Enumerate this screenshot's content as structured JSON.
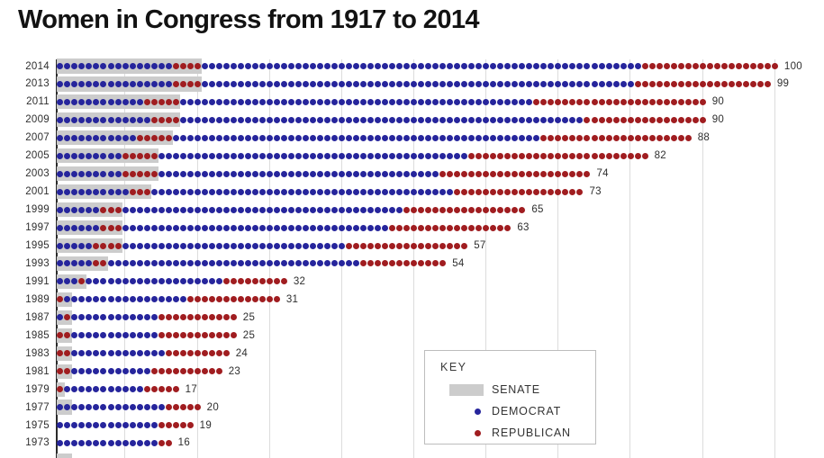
{
  "title": "Women in Congress from 1917 to 2014",
  "key": {
    "heading": "KEY",
    "senate_label": "SENATE",
    "democrat_label": "DEMOCRAT",
    "republican_label": "REPUBLICAN"
  },
  "colors": {
    "democrat": "#26259c",
    "republican": "#a01d20",
    "senate_band": "#cccccc",
    "gridline": "#dcdcdc",
    "axis": "#2b2b2b"
  },
  "chart_data": {
    "type": "dot-matrix",
    "title": "Women in Congress from 1917 to 2014",
    "legend": [
      "SENATE",
      "DEMOCRAT",
      "REPUBLICAN"
    ],
    "gridline_interval_seats": 10,
    "seat_axis_range": [
      0,
      100
    ],
    "note_partial_next_row_band_seats": 2,
    "rows": [
      {
        "year": "2014",
        "senate_d": 16,
        "senate_r": 4,
        "house_d": 61,
        "house_r": 19,
        "total": 100
      },
      {
        "year": "2013",
        "senate_d": 16,
        "senate_r": 4,
        "house_d": 60,
        "house_r": 19,
        "total": 99
      },
      {
        "year": "2011",
        "senate_d": 12,
        "senate_r": 5,
        "house_d": 49,
        "house_r": 24,
        "total": 90
      },
      {
        "year": "2009",
        "senate_d": 13,
        "senate_r": 4,
        "house_d": 56,
        "house_r": 17,
        "total": 90
      },
      {
        "year": "2007",
        "senate_d": 11,
        "senate_r": 5,
        "house_d": 51,
        "house_r": 21,
        "total": 88
      },
      {
        "year": "2005",
        "senate_d": 9,
        "senate_r": 5,
        "house_d": 43,
        "house_r": 25,
        "total": 82
      },
      {
        "year": "2003",
        "senate_d": 9,
        "senate_r": 5,
        "house_d": 39,
        "house_r": 21,
        "total": 74
      },
      {
        "year": "2001",
        "senate_d": 10,
        "senate_r": 3,
        "house_d": 42,
        "house_r": 18,
        "total": 73
      },
      {
        "year": "1999",
        "senate_d": 6,
        "senate_r": 3,
        "house_d": 39,
        "house_r": 17,
        "total": 65
      },
      {
        "year": "1997",
        "senate_d": 6,
        "senate_r": 3,
        "house_d": 37,
        "house_r": 17,
        "total": 63
      },
      {
        "year": "1995",
        "senate_d": 5,
        "senate_r": 4,
        "house_d": 31,
        "house_r": 17,
        "total": 57
      },
      {
        "year": "1993",
        "senate_d": 5,
        "senate_r": 2,
        "house_d": 35,
        "house_r": 12,
        "total": 54
      },
      {
        "year": "1991",
        "senate_d": 3,
        "senate_r": 1,
        "house_d": 19,
        "house_r": 9,
        "total": 32
      },
      {
        "year": "1989",
        "senate_d": 1,
        "senate_r": 1,
        "house_d": 16,
        "house_r": 13,
        "total": 31,
        "senate_order": "rd"
      },
      {
        "year": "1987",
        "senate_d": 1,
        "senate_r": 1,
        "house_d": 12,
        "house_r": 11,
        "total": 25
      },
      {
        "year": "1985",
        "senate_d": 0,
        "senate_r": 2,
        "house_d": 12,
        "house_r": 11,
        "total": 25
      },
      {
        "year": "1983",
        "senate_d": 0,
        "senate_r": 2,
        "house_d": 13,
        "house_r": 9,
        "total": 24
      },
      {
        "year": "1981",
        "senate_d": 0,
        "senate_r": 2,
        "house_d": 11,
        "house_r": 10,
        "total": 23
      },
      {
        "year": "1979",
        "senate_d": 0,
        "senate_r": 1,
        "house_d": 11,
        "house_r": 5,
        "total": 17
      },
      {
        "year": "1977",
        "senate_d": 2,
        "senate_r": 0,
        "house_d": 13,
        "house_r": 5,
        "total": 20
      },
      {
        "year": "1975",
        "senate_d": 0,
        "senate_r": 0,
        "house_d": 14,
        "house_r": 5,
        "total": 19
      },
      {
        "year": "1973",
        "senate_d": 0,
        "senate_r": 0,
        "house_d": 14,
        "house_r": 2,
        "total": 16
      }
    ]
  }
}
